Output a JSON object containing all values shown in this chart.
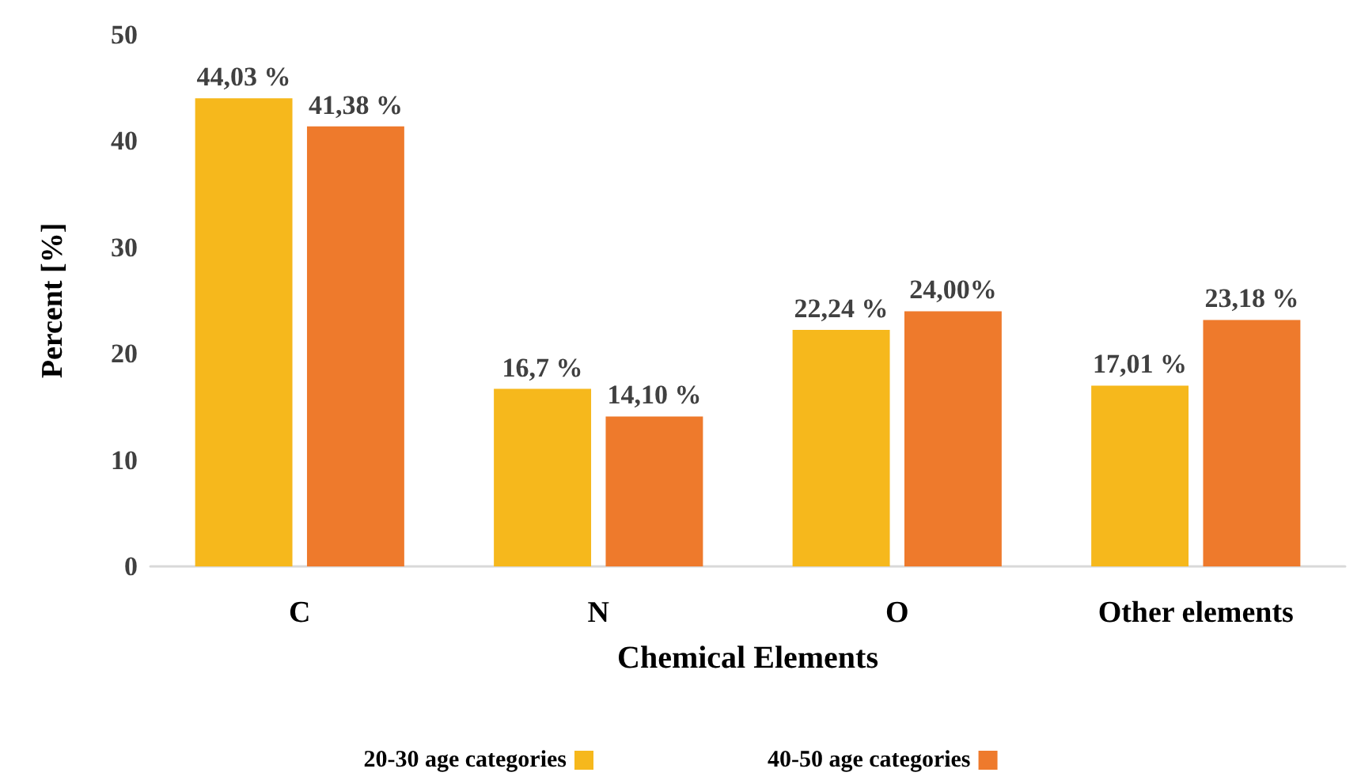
{
  "chart_data": {
    "type": "bar",
    "xlabel": "Chemical Elements",
    "ylabel": "Percent [%]",
    "categories": [
      "C",
      "N",
      "O",
      "Other elements"
    ],
    "series": [
      {
        "name": "20-30 age categories",
        "color": "#f6b81c",
        "values": [
          44.03,
          16.7,
          22.24,
          17.01
        ],
        "value_labels": [
          "44,03 %",
          "16,7 %",
          "22,24 %",
          "17,01 %"
        ]
      },
      {
        "name": "40-50 age categories",
        "color": "#ee7a2c",
        "values": [
          41.38,
          14.1,
          24.0,
          23.18
        ],
        "value_labels": [
          "41,38 %",
          "14,10 %",
          "24,00%",
          "23,18 %"
        ]
      }
    ],
    "ylim": [
      0,
      50
    ],
    "yticks": [
      0,
      10,
      20,
      30,
      40,
      50
    ],
    "grid": false,
    "legend": "bottom"
  }
}
